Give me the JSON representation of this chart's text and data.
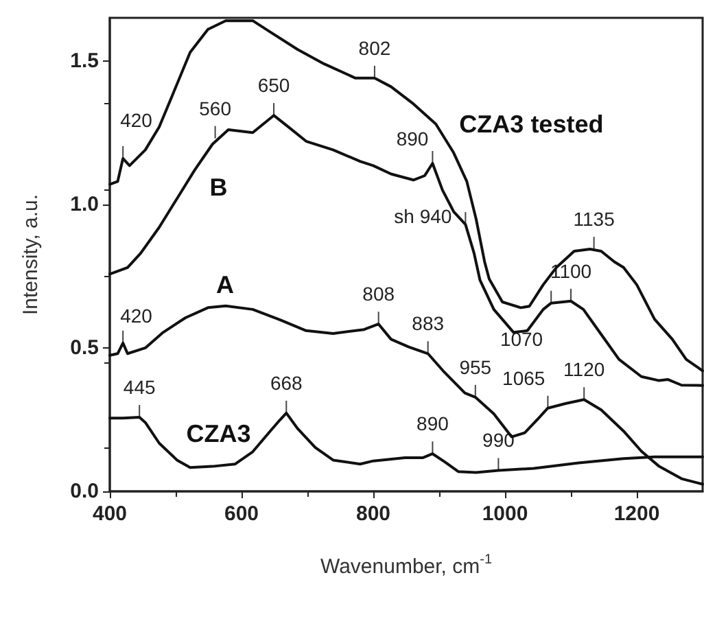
{
  "chart_data": {
    "type": "line",
    "xlabel": "Wavenumber, cm$^{-1}$",
    "ylabel": "Intensity, a.u.",
    "xlim": [
      400,
      1300
    ],
    "xticks": [
      400,
      600,
      800,
      1000,
      1200
    ],
    "ylim": [
      0,
      1.65
    ],
    "yticks": [
      {
        "value": 0,
        "label": "0.0"
      },
      {
        "value": 0.5,
        "label": "0.5"
      },
      {
        "value": 1,
        "label": "1.0"
      },
      {
        "value": 1.5,
        "label": "1.5"
      }
    ],
    "grid": false,
    "legend": false,
    "marker": "none",
    "line_style": "solid",
    "series": [
      {
        "name": "CZA3 tested",
        "color": "#111111",
        "x": [
          400,
          412,
          420,
          430,
          454,
          475,
          495,
          522,
          549,
          576,
          617,
          644,
          685,
          725,
          773,
          802,
          827,
          861,
          895,
          922,
          942,
          956,
          969,
          976,
          996,
          1024,
          1037,
          1058,
          1078,
          1105,
          1129,
          1146,
          1166,
          1180,
          1200,
          1227,
          1254,
          1275,
          1300
        ],
        "values": [
          1.07,
          1.08,
          1.16,
          1.135,
          1.19,
          1.27,
          1.38,
          1.53,
          1.61,
          1.64,
          1.64,
          1.6,
          1.54,
          1.49,
          1.44,
          1.44,
          1.41,
          1.35,
          1.28,
          1.18,
          1.08,
          0.95,
          0.8,
          0.74,
          0.66,
          0.64,
          0.645,
          0.72,
          0.78,
          0.837,
          0.844,
          0.837,
          0.8,
          0.78,
          0.72,
          0.6,
          0.53,
          0.46,
          0.42
        ]
      },
      {
        "name": "B",
        "color": "#111111",
        "x": [
          400,
          427,
          447,
          475,
          502,
          529,
          556,
          580,
          617,
          649,
          671,
          698,
          739,
          780,
          800,
          827,
          861,
          878,
          890,
          905,
          922,
          940,
          953,
          962,
          983,
          1013,
          1034,
          1058,
          1070,
          1100,
          1119,
          1146,
          1173,
          1207,
          1234,
          1247,
          1268,
          1300
        ],
        "values": [
          0.757,
          0.78,
          0.83,
          0.92,
          1.02,
          1.12,
          1.21,
          1.26,
          1.25,
          1.31,
          1.27,
          1.22,
          1.19,
          1.15,
          1.135,
          1.106,
          1.085,
          1.1,
          1.143,
          1.05,
          0.975,
          0.93,
          0.83,
          0.736,
          0.634,
          0.554,
          0.56,
          0.634,
          0.656,
          0.663,
          0.634,
          0.547,
          0.46,
          0.4,
          0.386,
          0.39,
          0.37,
          0.369
        ]
      },
      {
        "name": "A",
        "color": "#111111",
        "x": [
          400,
          412,
          420,
          427,
          454,
          481,
          515,
          549,
          576,
          617,
          658,
          698,
          739,
          786,
          808,
          827,
          854,
          883,
          908,
          939,
          955,
          983,
          1010,
          1030,
          1051,
          1065,
          1092,
          1120,
          1146,
          1180,
          1207,
          1234,
          1268,
          1300
        ],
        "values": [
          0.474,
          0.48,
          0.517,
          0.48,
          0.5,
          0.554,
          0.605,
          0.64,
          0.646,
          0.634,
          0.598,
          0.56,
          0.55,
          0.564,
          0.583,
          0.53,
          0.503,
          0.48,
          0.415,
          0.343,
          0.328,
          0.27,
          0.19,
          0.204,
          0.255,
          0.29,
          0.306,
          0.32,
          0.284,
          0.21,
          0.14,
          0.087,
          0.044,
          0.025
        ]
      },
      {
        "name": "CZA3",
        "color": "#111111",
        "x": [
          400,
          420,
          445,
          454,
          475,
          502,
          522,
          556,
          590,
          617,
          644,
          658,
          668,
          685,
          712,
          739,
          780,
          800,
          848,
          875,
          890,
          909,
          929,
          956,
          990,
          1044,
          1112,
          1180,
          1227,
          1300
        ],
        "values": [
          0.255,
          0.255,
          0.258,
          0.24,
          0.168,
          0.109,
          0.083,
          0.087,
          0.095,
          0.138,
          0.211,
          0.248,
          0.273,
          0.219,
          0.153,
          0.109,
          0.095,
          0.106,
          0.117,
          0.117,
          0.131,
          0.102,
          0.069,
          0.066,
          0.073,
          0.08,
          0.099,
          0.114,
          0.12,
          0.12
        ]
      }
    ],
    "annotations": [
      {
        "text": "420",
        "x": 420,
        "y": 1.16
      },
      {
        "text": "560",
        "x": 560,
        "y": 1.23
      },
      {
        "text": "650",
        "x": 649,
        "y": 1.31
      },
      {
        "text": "802",
        "x": 802,
        "y": 1.44
      },
      {
        "text": "890",
        "x": 890,
        "y": 1.143
      },
      {
        "text": "sh 940",
        "x": 940,
        "y": 0.93
      },
      {
        "text": "1135",
        "x": 1135,
        "y": 0.844
      },
      {
        "text": "1100",
        "x": 1100,
        "y": 0.663
      },
      {
        "text": "1070",
        "x": 1070,
        "y": 0.656
      },
      {
        "text": "420",
        "x": 420,
        "y": 0.517
      },
      {
        "text": "808",
        "x": 808,
        "y": 0.583
      },
      {
        "text": "883",
        "x": 883,
        "y": 0.48
      },
      {
        "text": "955",
        "x": 955,
        "y": 0.328
      },
      {
        "text": "1065",
        "x": 1065,
        "y": 0.29
      },
      {
        "text": "1120",
        "x": 1120,
        "y": 0.32
      },
      {
        "text": "445",
        "x": 445,
        "y": 0.258
      },
      {
        "text": "668",
        "x": 668,
        "y": 0.273
      },
      {
        "text": "890",
        "x": 890,
        "y": 0.131
      },
      {
        "text": "990",
        "x": 990,
        "y": 0.073
      }
    ]
  }
}
